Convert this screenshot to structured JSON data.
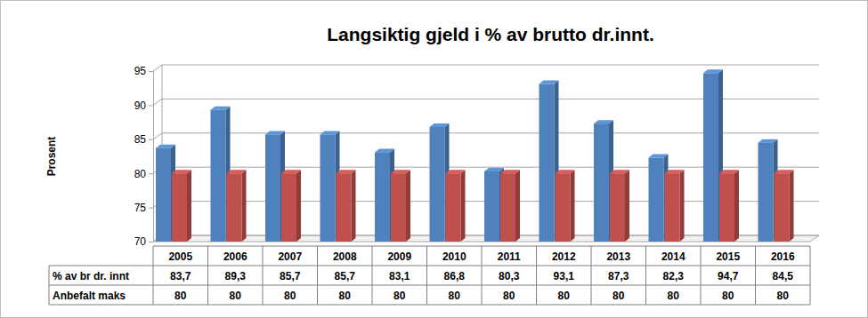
{
  "chart_data": {
    "type": "bar",
    "title": "Langsiktig gjeld i % av brutto dr.innt.",
    "y_label": "Prosent",
    "categories": [
      "2005",
      "2006",
      "2007",
      "2008",
      "2009",
      "2010",
      "2011",
      "2012",
      "2013",
      "2014",
      "2015",
      "2016"
    ],
    "series": [
      {
        "name": "% av br dr. innt",
        "color": "#4f81bd",
        "values": [
          83.7,
          89.3,
          85.7,
          85.7,
          83.1,
          86.8,
          80.3,
          93.1,
          87.3,
          82.3,
          94.7,
          84.5
        ],
        "value_labels": [
          "83,7",
          "89,3",
          "85,7",
          "85,7",
          "83,1",
          "86,8",
          "80,3",
          "93,1",
          "87,3",
          "82,3",
          "94,7",
          "84,5"
        ]
      },
      {
        "name": "Anbefalt maks",
        "color": "#c0504d",
        "values": [
          80,
          80,
          80,
          80,
          80,
          80,
          80,
          80,
          80,
          80,
          80,
          80
        ]
      }
    ],
    "ylim": [
      70,
      95
    ],
    "yticks": [
      70,
      75,
      80,
      85,
      90,
      95
    ],
    "grid": true,
    "data_labels": true
  }
}
